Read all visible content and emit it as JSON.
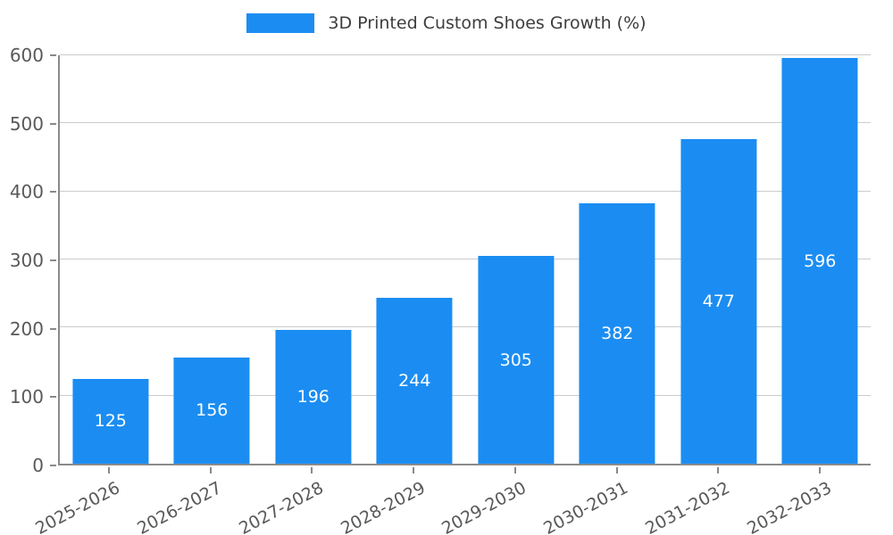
{
  "chart_data": {
    "type": "bar",
    "title": "3D Printed Custom Shoes Growth (%)",
    "categories": [
      "2025-2026",
      "2026-2027",
      "2027-2028",
      "2028-2029",
      "2029-2030",
      "2030-2031",
      "2031-2032",
      "2032-2033"
    ],
    "values": [
      125,
      156,
      196,
      244,
      305,
      382,
      477,
      596
    ],
    "xlabel": "",
    "ylabel": "",
    "ylim": [
      0,
      600
    ],
    "yticks": [
      0,
      100,
      200,
      300,
      400,
      500,
      600
    ],
    "grid": true,
    "legend_position": "top-center",
    "bar_color": "#1b8df2",
    "value_label_color": "#ffffff",
    "tick_label_color": "#595959",
    "grid_color": "#cccccc",
    "axis_color": "#8a8a8a",
    "background_color": "#ffffff"
  },
  "legend": {
    "label": "3D Printed Custom Shoes Growth (%)"
  }
}
